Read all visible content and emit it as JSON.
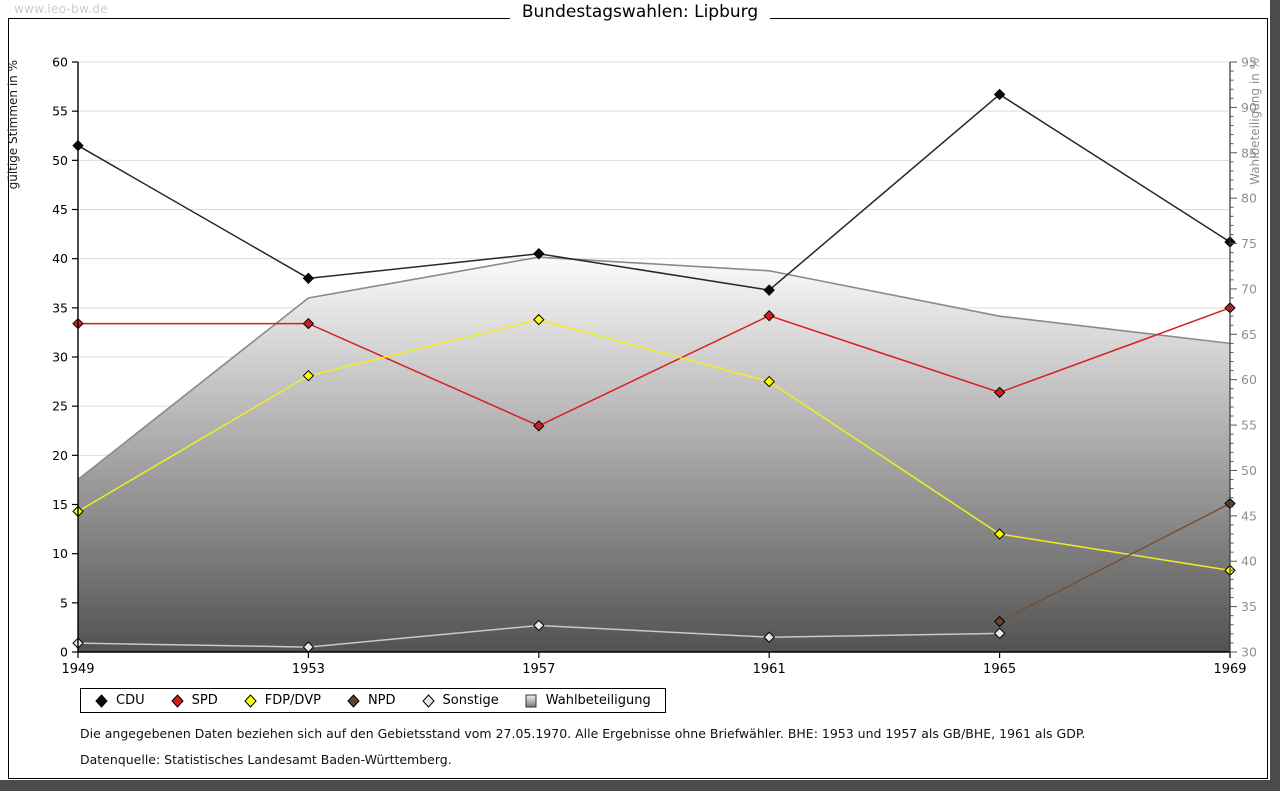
{
  "watermark": "www.leo-bw.de",
  "footnotes": {
    "line1": "Die angegebenen Daten beziehen sich auf den Gebietsstand vom 27.05.1970. Alle Ergebnisse ohne Briefwähler. BHE: 1953 und 1957 als GB/BHE, 1961 als GDP.",
    "line2": "Datenquelle: Statistisches Landesamt Baden-Württemberg."
  },
  "chart_data": {
    "type": "line",
    "title": "Bundestagswahlen: Lipburg",
    "categories": [
      1949,
      1953,
      1957,
      1961,
      1965,
      1969
    ],
    "axis_left": {
      "label": "gültige Stimmen in %",
      "min": 0,
      "max": 60,
      "tick_step": 5
    },
    "axis_right": {
      "label": "Wahlbeteiligung in %",
      "min": 30,
      "max": 95,
      "tick_step": 5,
      "minor_tick_step": 1
    },
    "grid": true,
    "legend_position": "bottom",
    "series": [
      {
        "name": "CDU",
        "type": "line",
        "axis": "left",
        "color": "#262626",
        "marker": "diamond",
        "marker_fill": "#0a0a0a",
        "values": [
          51.5,
          38.0,
          40.5,
          36.8,
          56.7,
          41.7
        ]
      },
      {
        "name": "SPD",
        "type": "line",
        "axis": "left",
        "color": "#d81e1e",
        "marker": "diamond",
        "marker_fill": "#d31d1d",
        "values": [
          33.4,
          33.4,
          23.0,
          34.2,
          26.4,
          35.0
        ]
      },
      {
        "name": "FDP/DVP",
        "type": "line",
        "axis": "left",
        "color": "#f0ee22",
        "marker": "diamond",
        "marker_fill": "#ffff00",
        "values": [
          14.3,
          28.1,
          33.8,
          27.5,
          12.0,
          8.3
        ]
      },
      {
        "name": "NPD",
        "type": "line",
        "axis": "left",
        "color": "#74503a",
        "marker": "diamond",
        "marker_fill": "#63432f",
        "values": [
          null,
          null,
          null,
          null,
          3.1,
          15.1
        ]
      },
      {
        "name": "Sonstige",
        "type": "line",
        "axis": "left",
        "color": "#c8c8c8",
        "marker": "diamond",
        "marker_fill": "#e8e8e8",
        "values": [
          0.9,
          0.5,
          2.7,
          1.5,
          1.9,
          null
        ]
      },
      {
        "name": "Wahlbeteiligung",
        "type": "area",
        "axis": "right",
        "color": "#8a8a8a",
        "marker": "square",
        "fill_gradient": [
          "#fbfbfb",
          "#525252"
        ],
        "values": [
          49,
          69,
          73.5,
          72,
          67,
          64
        ]
      }
    ]
  }
}
